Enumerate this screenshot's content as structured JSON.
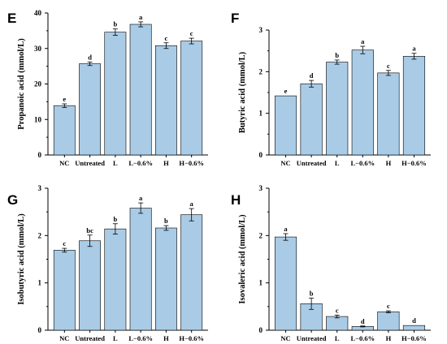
{
  "bar_color": "#a9cbe6",
  "chart_data": [
    {
      "panel": "E",
      "type": "bar",
      "ylabel": "Propanoic acid (mmol/L)",
      "categories": [
        "NC",
        "Untreated",
        "L",
        "L−0.6%",
        "H",
        "H−0.6%"
      ],
      "values": [
        13.9,
        25.7,
        34.6,
        36.8,
        30.8,
        32.1
      ],
      "errors": [
        0.5,
        0.5,
        0.9,
        0.7,
        0.8,
        0.8
      ],
      "significance": [
        "e",
        "d",
        "b",
        "a",
        "c",
        "c"
      ],
      "ylim": [
        0,
        40
      ],
      "yticks": [
        0,
        10,
        20,
        30,
        40
      ]
    },
    {
      "panel": "F",
      "type": "bar",
      "ylabel": "Butyric acid (mmol/L)",
      "categories": [
        "NC",
        "Untreated",
        "L",
        "L−0.6%",
        "H",
        "H−0.6%"
      ],
      "values": [
        1.42,
        1.71,
        2.23,
        2.52,
        1.97,
        2.37
      ],
      "errors": [
        0.0,
        0.08,
        0.05,
        0.09,
        0.06,
        0.07
      ],
      "significance": [
        "e",
        "d",
        "b",
        "a",
        "c",
        "a"
      ],
      "ylim": [
        0,
        3
      ],
      "yticks": [
        0,
        1,
        2,
        3
      ]
    },
    {
      "panel": "G",
      "type": "bar",
      "ylabel": "Isobutyric acid (mmol/L)",
      "categories": [
        "NC",
        "Untreated",
        "L",
        "L−0.6%",
        "H",
        "H−0.6%"
      ],
      "values": [
        1.69,
        1.89,
        2.14,
        2.58,
        2.16,
        2.44
      ],
      "errors": [
        0.04,
        0.12,
        0.11,
        0.11,
        0.05,
        0.13
      ],
      "significance": [
        "c",
        "bc",
        "b",
        "a",
        "b",
        "a"
      ],
      "ylim": [
        0,
        3
      ],
      "yticks": [
        0,
        1,
        2,
        3
      ]
    },
    {
      "panel": "H",
      "type": "bar",
      "ylabel": "Isovaleric acid (mmol/L)",
      "categories": [
        "NC",
        "Untreated",
        "L",
        "L−0.6%",
        "H",
        "H−0.6%"
      ],
      "values": [
        1.97,
        0.56,
        0.29,
        0.08,
        0.39,
        0.1
      ],
      "errors": [
        0.07,
        0.12,
        0.03,
        0.01,
        0.02,
        0.0
      ],
      "significance": [
        "a",
        "b",
        "c",
        "d",
        "c",
        "d"
      ],
      "ylim": [
        0,
        3
      ],
      "yticks": [
        0,
        1,
        2,
        3
      ]
    }
  ]
}
